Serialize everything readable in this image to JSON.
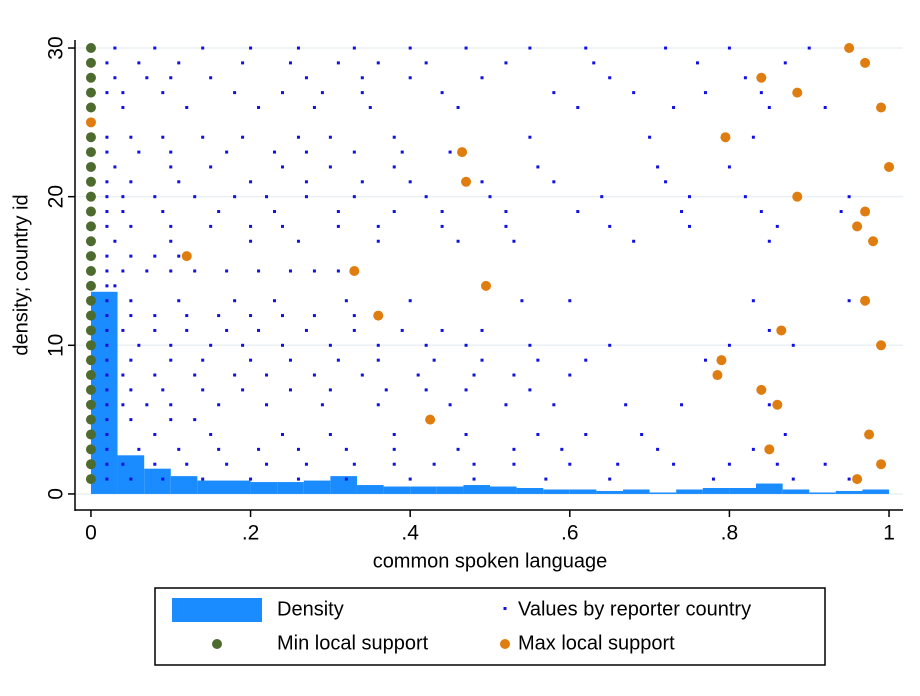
{
  "chart_data": {
    "type": "combo",
    "x_label": "common spoken language",
    "y_label": "density; country id",
    "xlim": [
      -0.02,
      1.0175
    ],
    "ylim": [
      -1.08,
      30.54
    ],
    "xticks": [
      0,
      {
        "value": 0.2,
        "label": ".2"
      },
      {
        "value": 0.4,
        "label": ".4"
      },
      {
        "value": 0.6,
        "label": ".6"
      },
      {
        "value": 0.8,
        "label": ".8"
      },
      1
    ],
    "yticks": [
      0,
      10,
      20,
      30
    ],
    "grid": true,
    "series": [
      {
        "name": "Density",
        "type": "histogram",
        "color": "#1a8cff",
        "bins": [
          0,
          0.0333,
          0.0667,
          0.1,
          0.1333,
          0.1667,
          0.2,
          0.2333,
          0.2667,
          0.3,
          0.3333,
          0.3667,
          0.4,
          0.4333,
          0.4667,
          0.5,
          0.5333,
          0.5667,
          0.6,
          0.6333,
          0.6667,
          0.7,
          0.7333,
          0.7667,
          0.8,
          0.8333,
          0.8667,
          0.9,
          0.9333,
          0.9667,
          1
        ],
        "values": [
          13.6,
          2.6,
          1.7,
          1.2,
          0.9,
          0.9,
          0.8,
          0.8,
          0.9,
          1.2,
          0.6,
          0.5,
          0.5,
          0.5,
          0.6,
          0.5,
          0.4,
          0.3,
          0.3,
          0.2,
          0.3,
          0.1,
          0.3,
          0.4,
          0.4,
          0.7,
          0.3,
          0.1,
          0.2,
          0.3
        ]
      },
      {
        "name": "Values by reporter country",
        "type": "scatter",
        "marker": "dot",
        "color": "#1010e0",
        "x": [
          0.03,
          0.08,
          0.14,
          0.2,
          0.26,
          0.33,
          0.4,
          0.47,
          0.55,
          0.62,
          0.72,
          0.8,
          0.9,
          0.02,
          0.06,
          0.11,
          0.19,
          0.25,
          0.31,
          0.36,
          0.42,
          0.52,
          0.63,
          0.76,
          0.87,
          0.03,
          0.07,
          0.1,
          0.15,
          0.27,
          0.34,
          0.4,
          0.49,
          0.65,
          0.82,
          0.02,
          0.04,
          0.09,
          0.18,
          0.24,
          0.29,
          0.34,
          0.44,
          0.58,
          0.68,
          0.77,
          0.84,
          0.04,
          0.12,
          0.21,
          0.28,
          0.35,
          0.46,
          0.61,
          0.73,
          0.85,
          0.92,
          0.02,
          0.05,
          0.09,
          0.14,
          0.19,
          0.26,
          0.3,
          0.38,
          0.55,
          0.7,
          0.83,
          0.02,
          0.06,
          0.1,
          0.17,
          0.23,
          0.27,
          0.33,
          0.39,
          0.45,
          0.03,
          0.1,
          0.15,
          0.24,
          0.3,
          0.38,
          0.56,
          0.71,
          0.8,
          0.02,
          0.05,
          0.11,
          0.2,
          0.27,
          0.34,
          0.4,
          0.49,
          0.58,
          0.72,
          0.02,
          0.04,
          0.08,
          0.13,
          0.18,
          0.22,
          0.27,
          0.33,
          0.42,
          0.5,
          0.64,
          0.75,
          0.82,
          0.95,
          0.02,
          0.04,
          0.09,
          0.16,
          0.23,
          0.31,
          0.38,
          0.44,
          0.52,
          0.61,
          0.74,
          0.84,
          0.94,
          0.02,
          0.05,
          0.1,
          0.15,
          0.2,
          0.24,
          0.31,
          0.36,
          0.44,
          0.52,
          0.65,
          0.75,
          0.86,
          0.96,
          0.03,
          0.1,
          0.2,
          0.26,
          0.36,
          0.46,
          0.53,
          0.68,
          0.85,
          0.02,
          0.05,
          0.08,
          0.11,
          0.02,
          0.04,
          0.07,
          0.1,
          0.13,
          0.17,
          0.21,
          0.25,
          0.28,
          0.31,
          0.02,
          0.03,
          0.02,
          0.05,
          0.11,
          0.18,
          0.23,
          0.32,
          0.4,
          0.54,
          0.6,
          0.83,
          0.95,
          0.02,
          0.05,
          0.08,
          0.12,
          0.16,
          0.2,
          0.24,
          0.28,
          0.33,
          0.02,
          0.04,
          0.08,
          0.12,
          0.17,
          0.21,
          0.27,
          0.33,
          0.39,
          0.44,
          0.49,
          0.85,
          0.02,
          0.06,
          0.1,
          0.15,
          0.19,
          0.24,
          0.3,
          0.36,
          0.42,
          0.47,
          0.55,
          0.65,
          0.8,
          0.88,
          0.02,
          0.05,
          0.1,
          0.14,
          0.2,
          0.25,
          0.31,
          0.36,
          0.43,
          0.49,
          0.56,
          0.62,
          0.77,
          0.02,
          0.04,
          0.08,
          0.13,
          0.18,
          0.22,
          0.28,
          0.34,
          0.41,
          0.48,
          0.53,
          0.6,
          0.02,
          0.05,
          0.09,
          0.14,
          0.19,
          0.25,
          0.3,
          0.37,
          0.42,
          0.47,
          0.55,
          0.02,
          0.04,
          0.07,
          0.1,
          0.16,
          0.22,
          0.29,
          0.36,
          0.45,
          0.52,
          0.58,
          0.67,
          0.74,
          0.85,
          0.02,
          0.05,
          0.1,
          0.13,
          0.02,
          0.08,
          0.15,
          0.24,
          0.3,
          0.38,
          0.47,
          0.56,
          0.62,
          0.69,
          0.87,
          0.02,
          0.06,
          0.11,
          0.16,
          0.21,
          0.26,
          0.32,
          0.38,
          0.46,
          0.53,
          0.59,
          0.71,
          0.83,
          0.02,
          0.04,
          0.08,
          0.12,
          0.17,
          0.22,
          0.27,
          0.33,
          0.38,
          0.43,
          0.48,
          0.53,
          0.6,
          0.66,
          0.73,
          0.8,
          0.86,
          0.92,
          0.02,
          0.05,
          0.09,
          0.14,
          0.2,
          0.26,
          0.32,
          0.4,
          0.48,
          0.57,
          0.65,
          0.78,
          0.88,
          0.95
        ],
        "values": [
          30,
          30,
          30,
          30,
          30,
          30,
          30,
          30,
          30,
          30,
          30,
          30,
          30,
          29,
          29,
          29,
          29,
          29,
          29,
          29,
          29,
          29,
          29,
          29,
          29,
          28,
          28,
          28,
          28,
          28,
          28,
          28,
          28,
          28,
          28,
          27,
          27,
          27,
          27,
          27,
          27,
          27,
          27,
          27,
          27,
          27,
          27,
          26,
          26,
          26,
          26,
          26,
          26,
          26,
          26,
          26,
          26,
          24,
          24,
          24,
          24,
          24,
          24,
          24,
          24,
          24,
          24,
          24,
          23,
          23,
          23,
          23,
          23,
          23,
          23,
          23,
          23,
          22,
          22,
          22,
          22,
          22,
          22,
          22,
          22,
          22,
          21,
          21,
          21,
          21,
          21,
          21,
          21,
          21,
          21,
          21,
          20,
          20,
          20,
          20,
          20,
          20,
          20,
          20,
          20,
          20,
          20,
          20,
          20,
          20,
          19,
          19,
          19,
          19,
          19,
          19,
          19,
          19,
          19,
          19,
          19,
          19,
          19,
          18,
          18,
          18,
          18,
          18,
          18,
          18,
          18,
          18,
          18,
          18,
          18,
          18,
          18,
          17,
          17,
          17,
          17,
          17,
          17,
          17,
          17,
          17,
          16,
          16,
          16,
          16,
          15,
          15,
          15,
          15,
          15,
          15,
          15,
          15,
          15,
          15,
          14,
          14,
          13,
          13,
          13,
          13,
          13,
          13,
          13,
          13,
          13,
          13,
          13,
          12,
          12,
          12,
          12,
          12,
          12,
          12,
          12,
          12,
          11,
          11,
          11,
          11,
          11,
          11,
          11,
          11,
          11,
          11,
          11,
          11,
          10,
          10,
          10,
          10,
          10,
          10,
          10,
          10,
          10,
          10,
          10,
          10,
          10,
          10,
          9,
          9,
          9,
          9,
          9,
          9,
          9,
          9,
          9,
          9,
          9,
          9,
          9,
          8,
          8,
          8,
          8,
          8,
          8,
          8,
          8,
          8,
          8,
          8,
          8,
          7,
          7,
          7,
          7,
          7,
          7,
          7,
          7,
          7,
          7,
          7,
          6,
          6,
          6,
          6,
          6,
          6,
          6,
          6,
          6,
          6,
          6,
          6,
          6,
          6,
          5,
          5,
          5,
          5,
          4,
          4,
          4,
          4,
          4,
          4,
          4,
          4,
          4,
          4,
          4,
          3,
          3,
          3,
          3,
          3,
          3,
          3,
          3,
          3,
          3,
          3,
          3,
          3,
          2,
          2,
          2,
          2,
          2,
          2,
          2,
          2,
          2,
          2,
          2,
          2,
          2,
          2,
          2,
          2,
          2,
          2,
          1,
          1,
          1,
          1,
          1,
          1,
          1,
          1,
          1,
          1,
          1,
          1,
          1,
          1
        ]
      },
      {
        "name": "Min local support",
        "type": "scatter",
        "marker": "circle",
        "color": "#4d6b2f",
        "x": [
          0,
          0,
          0,
          0,
          0,
          0,
          0,
          0,
          0,
          0,
          0,
          0,
          0,
          0,
          0,
          0,
          0,
          0,
          0,
          0,
          0,
          0,
          0,
          0,
          0,
          0,
          0,
          0,
          0
        ],
        "values": [
          1,
          2,
          3,
          4,
          5,
          6,
          7,
          8,
          9,
          10,
          11,
          12,
          13,
          14,
          15,
          16,
          17,
          18,
          19,
          20,
          21,
          22,
          23,
          24,
          26,
          27,
          28,
          29,
          30
        ]
      },
      {
        "name": "Max local support",
        "type": "scatter",
        "marker": "circle",
        "color": "#e07d10",
        "x": [
          0.96,
          0.99,
          0.85,
          0.975,
          0.425,
          0.86,
          0.84,
          0.785,
          0.79,
          0.99,
          0.865,
          0.36,
          0.97,
          0.495,
          0.33,
          0.12,
          0.98,
          0.96,
          0.97,
          0.885,
          0.47,
          1.0,
          0.465,
          0.795,
          0,
          0.99,
          0.885,
          0.84,
          0.97,
          0.95
        ],
        "values": [
          1,
          2,
          3,
          4,
          5,
          6,
          7,
          8,
          9,
          10,
          11,
          12,
          13,
          14,
          15,
          16,
          17,
          18,
          19,
          20,
          21,
          22,
          23,
          24,
          25,
          26,
          27,
          28,
          29,
          30
        ]
      }
    ]
  }
}
